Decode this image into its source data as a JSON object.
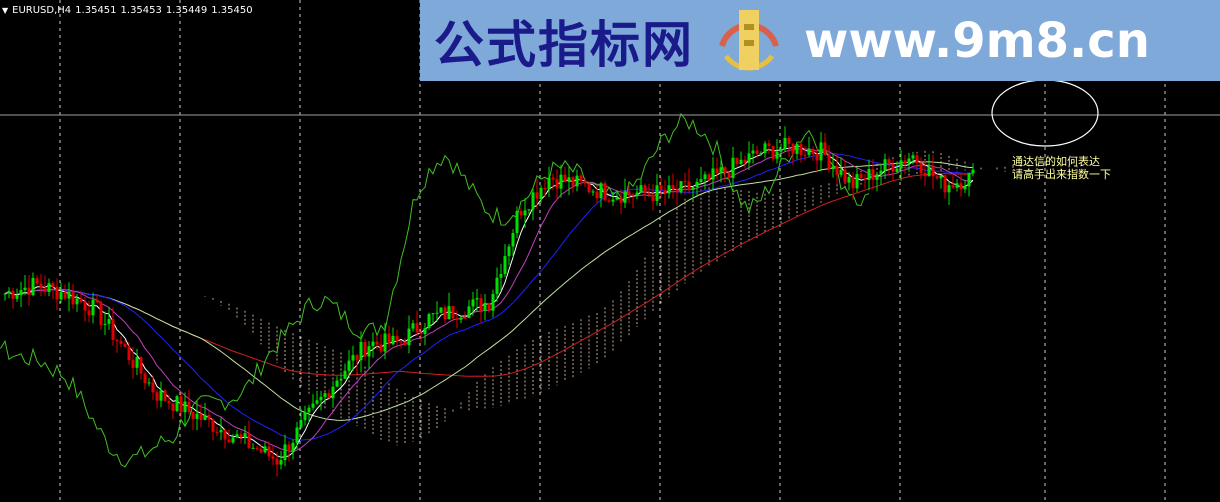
{
  "header": {
    "symbol_timeframe": "EURUSD,H4",
    "open": "1.35451",
    "high": "1.35453",
    "low": "1.35449",
    "close": "1.35450"
  },
  "watermark": {
    "site_name": "公式指标网",
    "url": "www.9m8.cn",
    "logo_text": "www.9m8.cn"
  },
  "annotation": {
    "line1": "通达信的如何表达",
    "line2": "请高手出来指数一下"
  },
  "colors": {
    "background": "#000000",
    "bull": "#00e000",
    "bear": "#e00000",
    "price_line": "#a0a0a0",
    "grid": "#ffffff",
    "cloud": "#e8c8b0"
  },
  "chart_data": {
    "type": "candlestick",
    "symbol": "EURUSD",
    "timeframe": "H4",
    "current_price": 1.3545,
    "grid": "vertical dashed",
    "indicators": [
      "Ichimoku cloud",
      "moving averages"
    ],
    "approx_close_path": [
      1.3438,
      1.3443,
      1.3438,
      1.3428,
      1.3403,
      1.3378,
      1.3368,
      1.3358,
      1.3348,
      1.3338,
      1.3363,
      1.3388,
      1.3408,
      1.3408,
      1.3423,
      1.3428,
      1.3433,
      1.3488,
      1.3508,
      1.3503,
      1.3498,
      1.3498,
      1.3498,
      1.3503,
      1.3513,
      1.3523,
      1.3526,
      1.3523,
      1.3503,
      1.3513,
      1.3521,
      1.3503,
      1.3508
    ]
  }
}
